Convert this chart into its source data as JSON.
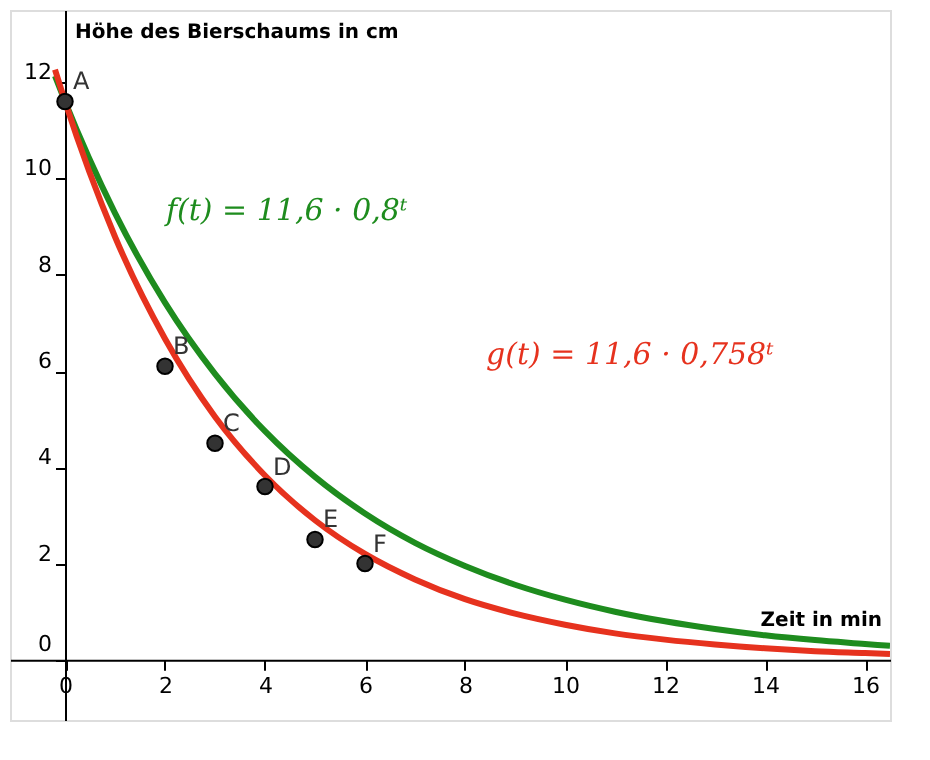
{
  "chart_data": {
    "type": "line",
    "xlabel": "Zeit in min",
    "ylabel": "Höhe des Bierschaums in cm",
    "xlim": [
      -1.1,
      16.5
    ],
    "ylim": [
      -1.25,
      13.5
    ],
    "xticks": [
      0,
      2,
      4,
      6,
      8,
      10,
      12,
      14,
      16
    ],
    "yticks": [
      0,
      2,
      4,
      6,
      8,
      10,
      12
    ],
    "grid": false,
    "legend": false,
    "series": [
      {
        "name": "f(t) = 11,6 · 0,8ᵗ",
        "color": "#1e8c1e",
        "x": [
          -0.2,
          0,
          1,
          2,
          3,
          4,
          5,
          6,
          7,
          8,
          9,
          10,
          11,
          12,
          13,
          14,
          15,
          16,
          16.5
        ],
        "values": [
          12.13,
          11.6,
          9.28,
          7.42,
          5.94,
          4.75,
          3.8,
          3.04,
          2.43,
          1.95,
          1.56,
          1.25,
          1.0,
          0.8,
          0.64,
          0.51,
          0.41,
          0.33,
          0.29
        ]
      },
      {
        "name": "g(t) = 11,6 · 0,758ᵗ",
        "color": "#e6321e",
        "x": [
          -0.2,
          0,
          1,
          2,
          3,
          4,
          5,
          6,
          7,
          8,
          9,
          10,
          11,
          12,
          13,
          14,
          15,
          16,
          16.5
        ],
        "values": [
          12.26,
          11.6,
          8.79,
          6.67,
          5.05,
          3.83,
          2.9,
          2.2,
          1.67,
          1.26,
          0.96,
          0.73,
          0.55,
          0.42,
          0.32,
          0.24,
          0.18,
          0.14,
          0.12
        ]
      },
      {
        "type": "scatter",
        "marker": "circle",
        "color": "#333333",
        "x": [
          0,
          2,
          3,
          4,
          5,
          6
        ],
        "values": [
          11.6,
          6.1,
          4.5,
          3.6,
          2.5,
          2.0
        ]
      }
    ],
    "annotations": [
      {
        "text": "A",
        "x": 0,
        "y": 11.6
      },
      {
        "text": "B",
        "x": 2,
        "y": 6.1
      },
      {
        "text": "C",
        "x": 3,
        "y": 4.5
      },
      {
        "text": "D",
        "x": 4,
        "y": 3.6
      },
      {
        "text": "E",
        "x": 5,
        "y": 2.5
      },
      {
        "text": "F",
        "x": 6,
        "y": 2.0
      }
    ]
  }
}
